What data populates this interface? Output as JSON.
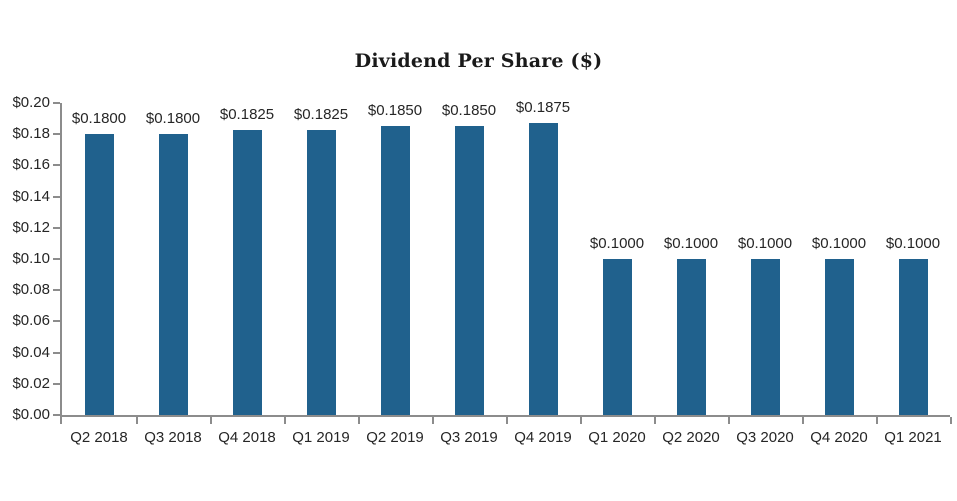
{
  "chart_data": {
    "type": "bar",
    "title": "Dividend Per Share ($)",
    "categories": [
      "Q2 2018",
      "Q3 2018",
      "Q4 2018",
      "Q1 2019",
      "Q2 2019",
      "Q3 2019",
      "Q4 2019",
      "Q1 2020",
      "Q2 2020",
      "Q3 2020",
      "Q4 2020",
      "Q1 2021"
    ],
    "values": [
      0.18,
      0.18,
      0.1825,
      0.1825,
      0.185,
      0.185,
      0.1875,
      0.1,
      0.1,
      0.1,
      0.1,
      0.1
    ],
    "bar_labels": [
      "$0.1800",
      "$0.1800",
      "$0.1825",
      "$0.1825",
      "$0.1850",
      "$0.1850",
      "$0.1875",
      "$0.1000",
      "$0.1000",
      "$0.1000",
      "$0.1000",
      "$0.1000"
    ],
    "y_tick_labels": [
      "$0.20",
      "$0.18",
      "$0.16",
      "$0.14",
      "$0.12",
      "$0.10",
      "$0.08",
      "$0.06",
      "$0.04",
      "$0.02",
      "$0.00"
    ],
    "y_tick_values": [
      0.2,
      0.18,
      0.16,
      0.14,
      0.12,
      0.1,
      0.08,
      0.06,
      0.04,
      0.02,
      0.0
    ],
    "ylim": [
      0,
      0.2
    ],
    "xlabel": "",
    "ylabel": "",
    "grid": false,
    "legend": "none",
    "colors": {
      "bar": "#20618D",
      "axis": "#8C8C8C",
      "text": "#262626",
      "title": "#1A1A1A"
    }
  }
}
